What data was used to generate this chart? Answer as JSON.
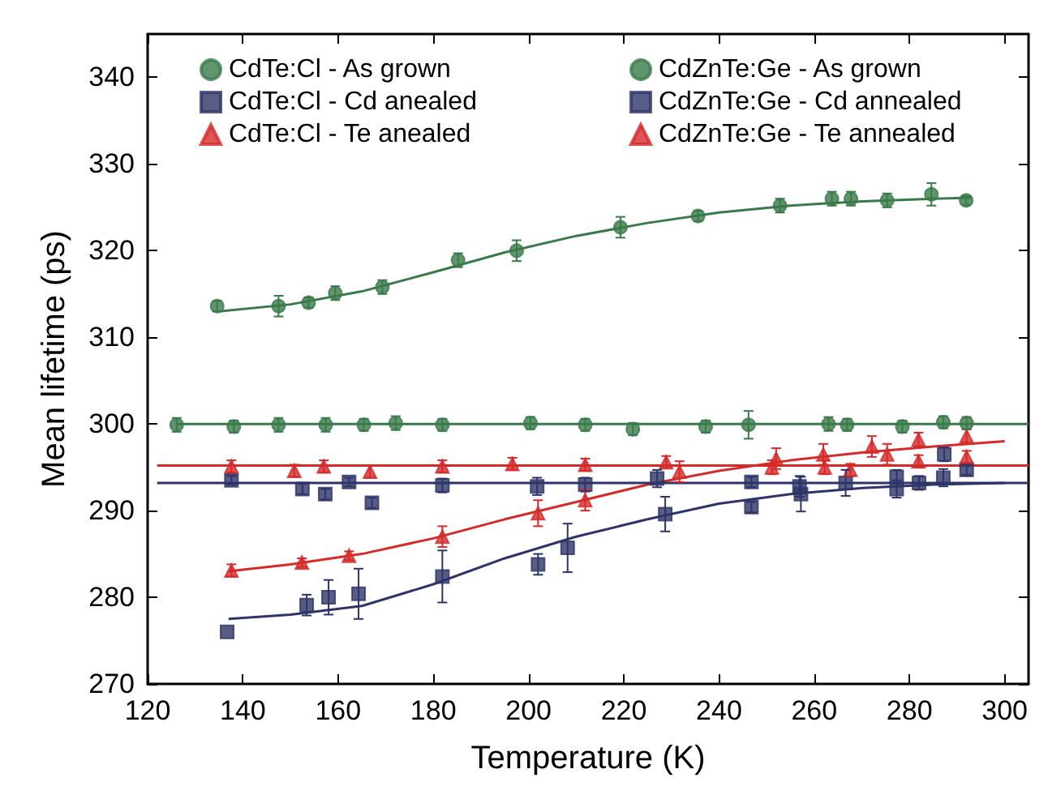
{
  "chart_data": {
    "type": "scatter",
    "xlabel": "Temperature (K)",
    "ylabel": "Mean lifetime (ps)",
    "xlim": [
      120,
      305
    ],
    "xticks": [
      120,
      140,
      160,
      180,
      200,
      220,
      240,
      260,
      280,
      300
    ],
    "ylim": [
      270,
      345
    ],
    "yticks": [
      270,
      280,
      290,
      300,
      310,
      320,
      330,
      340
    ],
    "legend": "top",
    "grid": false,
    "series": [
      {
        "name": "CdTe:Cl - As grown",
        "color": "#3a7a4a",
        "marker": "circle",
        "x": [
          134.6,
          147.5,
          153.8,
          159.4,
          169.3,
          185.2,
          197.5,
          219.3,
          235.6,
          252.8,
          263.7,
          267.7,
          275.3,
          284.6,
          291.9
        ],
        "values": [
          313.6,
          313.6,
          314.0,
          315.1,
          315.8,
          318.9,
          320.0,
          322.7,
          324.0,
          325.2,
          326.0,
          326.0,
          325.8,
          326.5,
          325.8
        ],
        "errors": [
          0.6,
          1.2,
          0.6,
          0.8,
          0.8,
          0.8,
          1.2,
          1.2,
          0.6,
          0.8,
          0.8,
          0.8,
          0.8,
          1.3,
          0.5
        ]
      },
      {
        "name": "CdTe:Cl - Cd anealed",
        "color": "#2e3468",
        "marker": "square",
        "x": [
          136.7,
          153.4,
          158.0,
          164.3,
          181.9,
          202.0,
          208.2,
          228.7,
          246.8,
          257.2,
          266.6,
          277.3,
          287.3
        ],
        "values": [
          276.0,
          279.1,
          280.0,
          280.4,
          282.4,
          283.8,
          285.7,
          289.6,
          290.4,
          291.9,
          293.2,
          292.5,
          296.5
        ],
        "errors": [
          null,
          1.2,
          2.0,
          2.9,
          3.0,
          1.2,
          2.8,
          2.0,
          0.6,
          2.0,
          1.5,
          1.0,
          0.8
        ]
      },
      {
        "name": "CdTe:Cl - Te anealed",
        "color": "#d42a2a",
        "marker": "triangle",
        "x": [
          137.6,
          152.4,
          162.3,
          181.9,
          202.0,
          211.9,
          231.7,
          252.0,
          261.9,
          272.1,
          281.9,
          292.0
        ],
        "values": [
          283.1,
          284.0,
          284.8,
          287.0,
          289.7,
          291.2,
          294.5,
          296.0,
          296.5,
          297.4,
          298.2,
          298.6
        ],
        "errors": [
          0.7,
          0.5,
          0.5,
          1.2,
          1.5,
          1.2,
          1.2,
          1.2,
          1.2,
          1.2,
          0.8,
          0.8
        ]
      },
      {
        "name": "CdZnTe:Ge - As grown",
        "color": "#3a7a4a",
        "marker": "circle",
        "x": [
          126.1,
          138.1,
          147.5,
          157.4,
          165.4,
          172.1,
          181.9,
          200.4,
          211.9,
          221.9,
          237.2,
          246.2,
          263.0,
          266.9,
          278.5,
          287.1,
          292.0
        ],
        "values": [
          299.9,
          299.7,
          299.9,
          299.9,
          299.9,
          300.1,
          299.9,
          300.1,
          299.9,
          299.4,
          299.7,
          299.9,
          300.0,
          299.9,
          299.7,
          300.2,
          300.1
        ],
        "errors": [
          0.8,
          0.7,
          0.8,
          0.8,
          0.7,
          0.8,
          0.7,
          0.7,
          0.7,
          0.7,
          0.7,
          1.6,
          0.8,
          0.7,
          0.7,
          0.7,
          0.7
        ]
      },
      {
        "name": "CdZnTe:Ge - Cd annealed",
        "color": "#2e3468",
        "marker": "square",
        "x": [
          137.6,
          152.5,
          157.3,
          162.3,
          167.1,
          181.9,
          201.8,
          211.9,
          227.0,
          246.8,
          256.9,
          277.3,
          282.0,
          287.1,
          292.0
        ],
        "values": [
          293.5,
          292.5,
          291.9,
          293.3,
          290.9,
          292.9,
          292.8,
          293.0,
          293.7,
          293.3,
          292.8,
          293.9,
          293.2,
          293.8,
          294.7
        ],
        "errors": [
          0.5,
          0.6,
          0.6,
          0.5,
          0.6,
          0.8,
          1.0,
          0.8,
          1.0,
          0.6,
          1.2,
          0.8,
          0.8,
          1.0,
          0.6
        ]
      },
      {
        "name": "CdZnTe:Ge - Te annealed",
        "color": "#d42a2a",
        "marker": "triangle",
        "x": [
          137.6,
          150.8,
          157.0,
          166.7,
          181.9,
          196.6,
          211.9,
          228.9,
          251.1,
          262.2,
          267.6,
          275.3,
          281.9,
          292.0
        ],
        "values": [
          295.1,
          294.6,
          295.1,
          294.5,
          295.1,
          295.4,
          295.3,
          295.6,
          295.0,
          295.0,
          294.7,
          296.5,
          295.7,
          296.2
        ],
        "errors": [
          0.7,
          0.7,
          0.7,
          0.7,
          0.7,
          0.7,
          0.7,
          0.7,
          0.8,
          0.8,
          0.7,
          1.2,
          0.7,
          0.7
        ]
      },
      {
        "type": "line",
        "color": "#3a7a4a",
        "x": [
          135,
          150,
          165,
          180,
          195,
          210,
          225,
          240,
          255,
          270,
          285,
          293
        ],
        "values": [
          313.0,
          313.8,
          315.3,
          317.5,
          319.8,
          321.7,
          323.2,
          324.4,
          325.2,
          325.7,
          326.0,
          326.1
        ]
      },
      {
        "type": "line",
        "color": "#2e3468",
        "x": [
          137,
          150,
          165,
          180,
          195,
          210,
          225,
          240,
          255,
          270,
          285,
          300
        ],
        "values": [
          277.5,
          278.0,
          279.0,
          281.5,
          284.5,
          287.0,
          289.0,
          290.8,
          291.9,
          292.6,
          293.0,
          293.2
        ]
      },
      {
        "type": "line",
        "color": "#d42a2a",
        "x": [
          137,
          150,
          165,
          180,
          195,
          210,
          225,
          240,
          255,
          270,
          285,
          300
        ],
        "values": [
          283.0,
          283.8,
          285.0,
          286.8,
          289.0,
          291.0,
          293.0,
          294.6,
          295.8,
          296.7,
          297.4,
          298.0
        ]
      },
      {
        "type": "line",
        "color": "#3a7a4a",
        "x": [
          126,
          305
        ],
        "values": [
          300.0,
          300.0
        ]
      },
      {
        "type": "line",
        "color": "#2e3468",
        "x": [
          122,
          305
        ],
        "values": [
          293.2,
          293.2
        ]
      },
      {
        "type": "line",
        "color": "#d42a2a",
        "x": [
          122,
          305
        ],
        "values": [
          295.2,
          295.2
        ]
      }
    ]
  }
}
